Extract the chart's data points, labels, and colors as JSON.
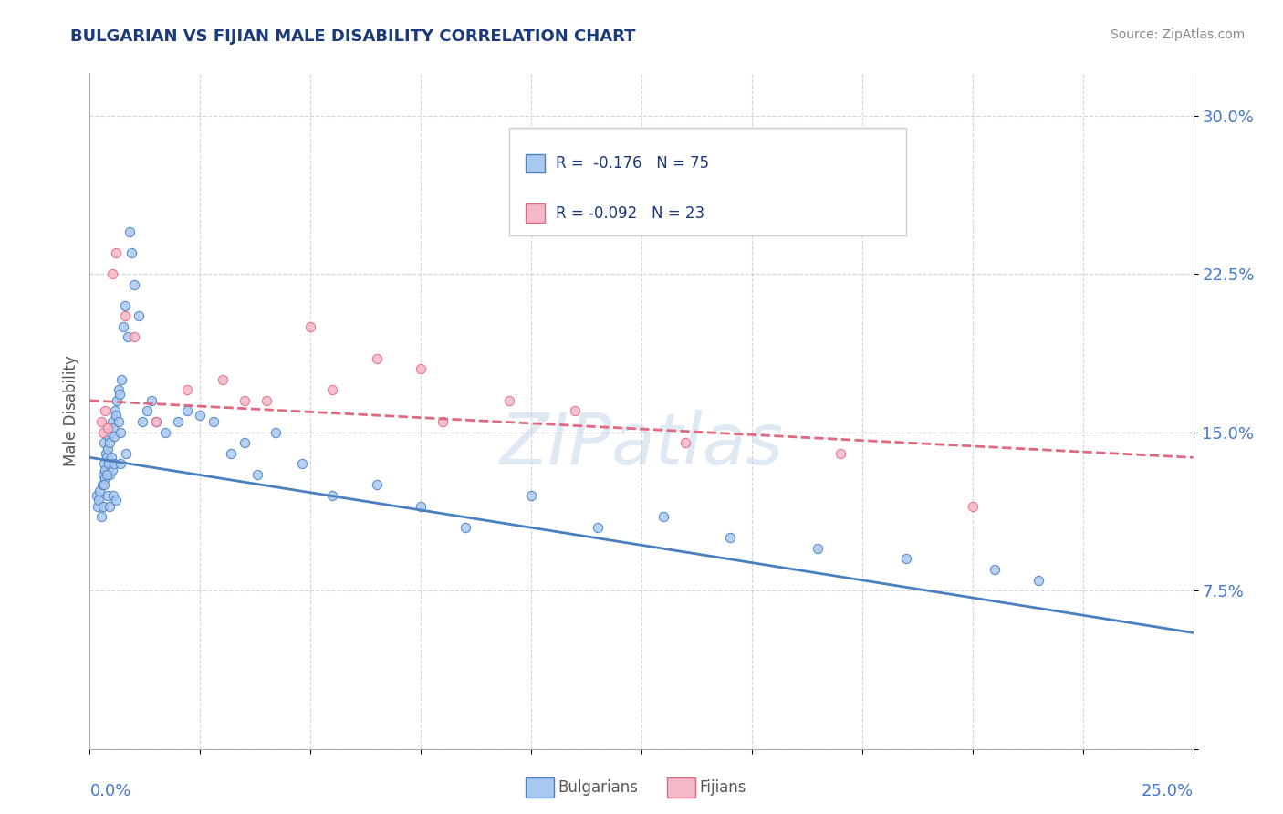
{
  "title": "BULGARIAN VS FIJIAN MALE DISABILITY CORRELATION CHART",
  "source": "Source: ZipAtlas.com",
  "ylabel": "Male Disability",
  "xlim": [
    0.0,
    25.0
  ],
  "ylim": [
    0.0,
    32.0
  ],
  "yticks": [
    0.0,
    7.5,
    15.0,
    22.5,
    30.0
  ],
  "ytick_labels": [
    "",
    "7.5%",
    "15.0%",
    "22.5%",
    "30.0%"
  ],
  "watermark": "ZIPatlas",
  "legend_r1": "R =  -0.176   N = 75",
  "legend_r2": "R = -0.092   N = 23",
  "bulgarian_color": "#a8c8f0",
  "fijian_color": "#f5b8c8",
  "bulgarian_line_color": "#4a7fc0",
  "fijian_line_color": "#e06880",
  "title_color": "#1a3a7a",
  "axis_label_color": "#4477cc",
  "legend_text_color": "#1a3a7a",
  "source_color": "#888888",
  "background_color": "#ffffff",
  "grid_color": "#cccccc",
  "bulgarian_x": [
    0.15,
    0.18,
    0.2,
    0.22,
    0.25,
    0.28,
    0.3,
    0.3,
    0.32,
    0.33,
    0.35,
    0.35,
    0.37,
    0.38,
    0.4,
    0.4,
    0.42,
    0.43,
    0.45,
    0.45,
    0.47,
    0.48,
    0.5,
    0.5,
    0.52,
    0.55,
    0.55,
    0.57,
    0.6,
    0.62,
    0.65,
    0.65,
    0.68,
    0.7,
    0.72,
    0.75,
    0.8,
    0.85,
    0.9,
    0.95,
    1.0,
    1.1,
    1.2,
    1.3,
    1.4,
    1.5,
    1.7,
    2.0,
    2.2,
    2.5,
    2.8,
    3.2,
    3.5,
    3.8,
    4.2,
    4.8,
    5.5,
    6.5,
    7.5,
    8.5,
    10.0,
    11.5,
    13.0,
    14.5,
    16.5,
    18.5,
    20.5,
    21.5,
    0.33,
    0.38,
    0.45,
    0.52,
    0.6,
    0.7,
    0.82
  ],
  "bulgarian_y": [
    12.0,
    11.5,
    11.8,
    12.2,
    11.0,
    12.5,
    13.0,
    11.5,
    14.5,
    13.5,
    12.8,
    13.2,
    14.0,
    13.8,
    14.2,
    12.0,
    13.5,
    14.8,
    14.5,
    13.0,
    15.0,
    13.8,
    15.5,
    13.2,
    15.2,
    14.8,
    13.5,
    16.0,
    15.8,
    16.5,
    17.0,
    15.5,
    16.8,
    15.0,
    17.5,
    20.0,
    21.0,
    19.5,
    24.5,
    23.5,
    22.0,
    20.5,
    15.5,
    16.0,
    16.5,
    15.5,
    15.0,
    15.5,
    16.0,
    15.8,
    15.5,
    14.0,
    14.5,
    13.0,
    15.0,
    13.5,
    12.0,
    12.5,
    11.5,
    10.5,
    12.0,
    10.5,
    11.0,
    10.0,
    9.5,
    9.0,
    8.5,
    8.0,
    12.5,
    13.0,
    11.5,
    12.0,
    11.8,
    13.5,
    14.0
  ],
  "fijian_x": [
    0.25,
    0.3,
    0.35,
    0.4,
    0.5,
    0.6,
    0.8,
    1.0,
    1.5,
    2.2,
    3.0,
    4.0,
    5.0,
    6.5,
    7.5,
    9.5,
    11.0,
    13.5,
    17.0,
    20.0,
    3.5,
    5.5,
    8.0
  ],
  "fijian_y": [
    15.5,
    15.0,
    16.0,
    15.2,
    22.5,
    23.5,
    20.5,
    19.5,
    15.5,
    17.0,
    17.5,
    16.5,
    20.0,
    18.5,
    18.0,
    16.5,
    16.0,
    14.5,
    14.0,
    11.5,
    16.5,
    17.0,
    15.5
  ],
  "bg_trend_x": [
    0.0,
    25.0
  ],
  "bg_trend_y": [
    13.8,
    5.5
  ],
  "fj_trend_x": [
    0.0,
    25.0
  ],
  "fj_trend_y": [
    16.5,
    13.8
  ]
}
